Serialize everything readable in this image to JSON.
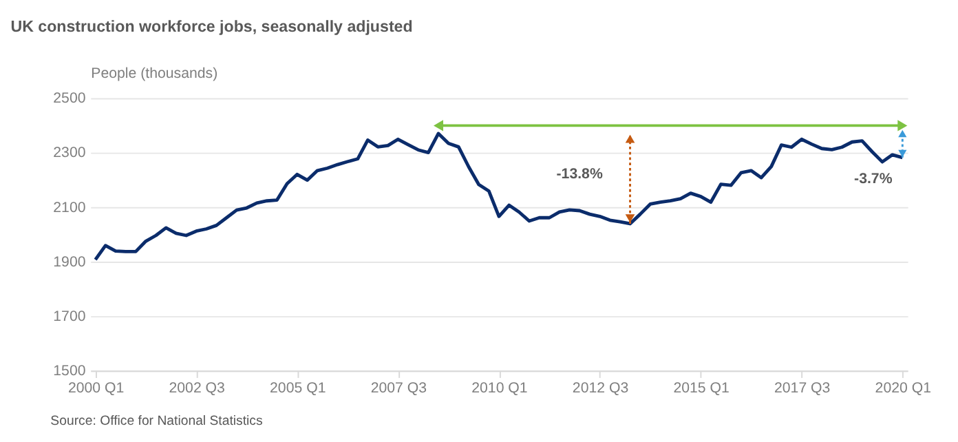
{
  "chart_data": {
    "type": "line",
    "title": "UK construction workforce jobs, seasonally adjusted",
    "ylabel": "People (thousands)",
    "categories": [
      "2000 Q1",
      null,
      null,
      null,
      null,
      null,
      null,
      null,
      null,
      null,
      "2002 Q3",
      null,
      null,
      null,
      null,
      null,
      null,
      null,
      null,
      null,
      "2005 Q1",
      null,
      null,
      null,
      null,
      null,
      null,
      null,
      null,
      null,
      "2007 Q3",
      null,
      null,
      null,
      null,
      null,
      null,
      null,
      null,
      null,
      "2010 Q1",
      null,
      null,
      null,
      null,
      null,
      null,
      null,
      null,
      null,
      "2012 Q3",
      null,
      null,
      null,
      null,
      null,
      null,
      null,
      null,
      null,
      "2015 Q1",
      null,
      null,
      null,
      null,
      null,
      null,
      null,
      null,
      null,
      "2017 Q3",
      null,
      null,
      null,
      null,
      null,
      null,
      null,
      null,
      null,
      "2020 Q1"
    ],
    "series": [
      {
        "color": "#0b2c6b",
        "values": [
          1907,
          1959,
          1939,
          1937,
          1937,
          1975,
          1996,
          2024,
          2004,
          1996,
          2012,
          2020,
          2033,
          2061,
          2089,
          2097,
          2115,
          2123,
          2126,
          2186,
          2220,
          2199,
          2234,
          2243,
          2256,
          2267,
          2277,
          2346,
          2321,
          2326,
          2349,
          2329,
          2310,
          2300,
          2370,
          2334,
          2321,
          2248,
          2183,
          2159,
          2066,
          2107,
          2082,
          2049,
          2061,
          2061,
          2082,
          2090,
          2087,
          2074,
          2066,
          2052,
          2046,
          2039,
          2074,
          2111,
          2118,
          2123,
          2131,
          2151,
          2139,
          2118,
          2184,
          2180,
          2226,
          2234,
          2208,
          2249,
          2328,
          2320,
          2349,
          2331,
          2315,
          2311,
          2320,
          2339,
          2343,
          2303,
          2266,
          2292,
          2282
        ]
      }
    ],
    "ylim": [
      1500,
      2500
    ],
    "yticks": [
      1500,
      1700,
      1900,
      2100,
      2300,
      2500
    ],
    "grid": "y",
    "annotations": [
      "-13.8%",
      "-3.7%",
      "Source: Office for National Statistics"
    ]
  }
}
